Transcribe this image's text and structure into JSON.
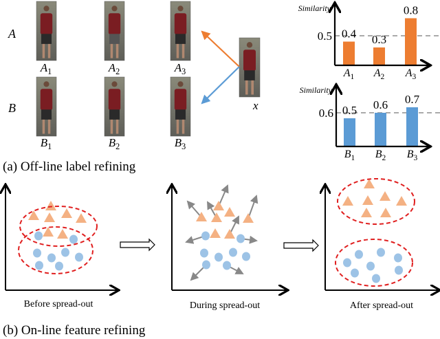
{
  "part_a": {
    "caption": "(a) Off-line label refining",
    "row_labels": [
      "A",
      "B"
    ],
    "gallery_a": [
      {
        "base": "A",
        "sub": "1"
      },
      {
        "base": "A",
        "sub": "2"
      },
      {
        "base": "A",
        "sub": "3"
      }
    ],
    "gallery_b": [
      {
        "base": "B",
        "sub": "1"
      },
      {
        "base": "B",
        "sub": "2"
      },
      {
        "base": "B",
        "sub": "3"
      }
    ],
    "query_label": "x"
  },
  "part_b": {
    "caption": "(b) On-line feature refining",
    "panels": [
      "Before spread-out",
      "During spread-out",
      "After spread-out"
    ]
  },
  "colors": {
    "orange": "#ed7d31",
    "blue": "#5b9bd5",
    "triangle": "#f4b183",
    "circle": "#9dc3e6",
    "ellipse": "#e01f1f",
    "arrow": "#888888"
  },
  "chart_data": [
    {
      "type": "bar",
      "ylabel": "Similarity",
      "categories": [
        "A1",
        "A2",
        "A3"
      ],
      "values": [
        0.4,
        0.3,
        0.8
      ],
      "threshold": 0.5,
      "threshold_label": "0.5",
      "color": "#ed7d31"
    },
    {
      "type": "bar",
      "ylabel": "Similarity",
      "categories": [
        "B1",
        "B2",
        "B3"
      ],
      "values": [
        0.5,
        0.6,
        0.7
      ],
      "threshold": 0.6,
      "threshold_label": "0.6",
      "color": "#5b9bd5"
    }
  ]
}
